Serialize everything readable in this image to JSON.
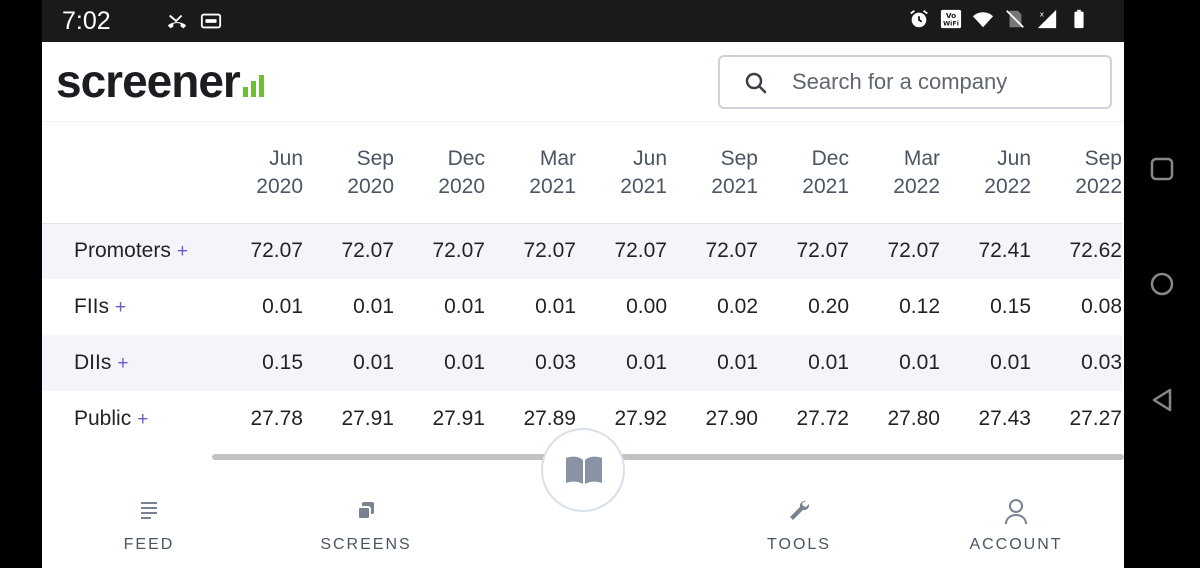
{
  "status_bar": {
    "time": "7:02",
    "icons": [
      "missed-call-icon",
      "voicemail-icon",
      "alarm-icon",
      "vowifi-icon",
      "wifi-icon",
      "no-sim-icon",
      "signal-icon",
      "battery-icon"
    ]
  },
  "header": {
    "logo_text": "screener",
    "search_placeholder": "Search for a company"
  },
  "table": {
    "columns": [
      {
        "month": "Jun",
        "year": "2020"
      },
      {
        "month": "Sep",
        "year": "2020"
      },
      {
        "month": "Dec",
        "year": "2020"
      },
      {
        "month": "Mar",
        "year": "2021"
      },
      {
        "month": "Jun",
        "year": "2021"
      },
      {
        "month": "Sep",
        "year": "2021"
      },
      {
        "month": "Dec",
        "year": "2021"
      },
      {
        "month": "Mar",
        "year": "2022"
      },
      {
        "month": "Jun",
        "year": "2022"
      },
      {
        "month": "Sep",
        "year": "2022"
      }
    ],
    "rows": [
      {
        "label": "Promoters",
        "plus": "+",
        "values": [
          "72.07",
          "72.07",
          "72.07",
          "72.07",
          "72.07",
          "72.07",
          "72.07",
          "72.07",
          "72.41",
          "72.62"
        ]
      },
      {
        "label": "FIIs",
        "plus": "+",
        "values": [
          "0.01",
          "0.01",
          "0.01",
          "0.01",
          "0.00",
          "0.02",
          "0.20",
          "0.12",
          "0.15",
          "0.08"
        ]
      },
      {
        "label": "DIIs",
        "plus": "+",
        "values": [
          "0.15",
          "0.01",
          "0.01",
          "0.03",
          "0.01",
          "0.01",
          "0.01",
          "0.01",
          "0.01",
          "0.03"
        ]
      },
      {
        "label": "Public",
        "plus": "+",
        "values": [
          "27.78",
          "27.91",
          "27.91",
          "27.89",
          "27.92",
          "27.90",
          "27.72",
          "27.80",
          "27.43",
          "27.27"
        ]
      }
    ]
  },
  "bottom_nav": {
    "feed": "FEED",
    "screens": "SCREENS",
    "tools": "TOOLS",
    "account": "ACCOUNT"
  },
  "colors": {
    "logo_bars": "#6dbf3b",
    "plus": "#6a5acd",
    "stripe": "#f4f5fb"
  }
}
